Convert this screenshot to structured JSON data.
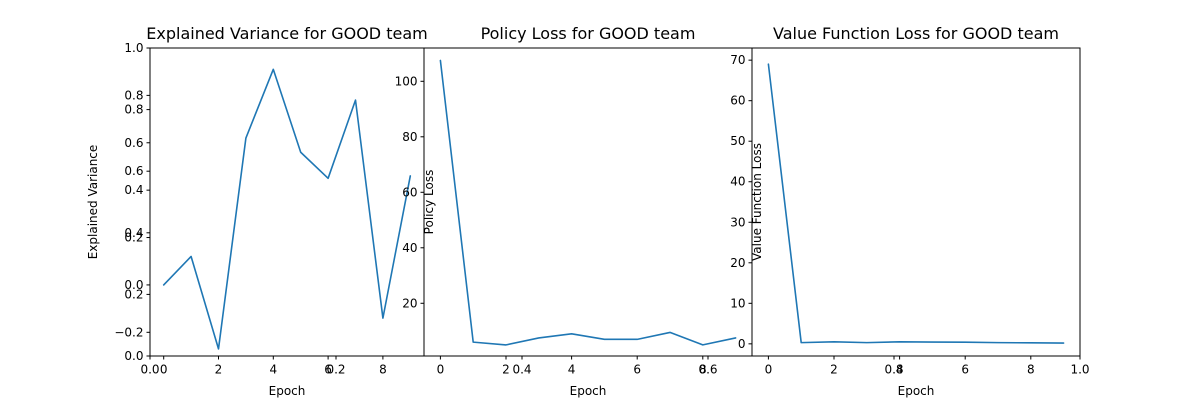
{
  "chart_data": [
    {
      "type": "line",
      "title": "Explained Variance for GOOD team",
      "xlabel": "Epoch",
      "ylabel": "Explained Variance",
      "xlim": [
        -0.5,
        9.5
      ],
      "ylim": [
        -0.3,
        1.0
      ],
      "x": [
        0,
        1,
        2,
        3,
        4,
        5,
        6,
        7,
        8,
        9
      ],
      "series": [
        {
          "name": "",
          "color": "#1f77b4",
          "values": [
            0.0,
            0.12,
            -0.27,
            0.62,
            0.91,
            0.56,
            0.45,
            0.78,
            -0.14,
            0.46
          ]
        }
      ],
      "xticks": [
        0,
        2,
        4,
        6,
        8
      ],
      "xtick_labels": [
        "0",
        "2",
        "4",
        "6",
        "8"
      ],
      "yticks": [
        -0.2,
        0.0,
        0.2,
        0.4,
        0.6,
        0.8
      ],
      "ytick_labels": [
        "−0.2",
        "0.0",
        "0.2",
        "0.4",
        "0.6",
        "0.8"
      ],
      "grid": false
    },
    {
      "type": "line",
      "title": "Policy Loss for GOOD team",
      "xlabel": "Epoch",
      "ylabel": "Policy Loss",
      "xlim": [
        -0.5,
        9.5
      ],
      "ylim": [
        1.0,
        112.0
      ],
      "x": [
        0,
        1,
        2,
        3,
        4,
        5,
        6,
        7,
        8,
        9
      ],
      "series": [
        {
          "name": "",
          "color": "#1f77b4",
          "values": [
            107.5,
            6.0,
            5.0,
            7.5,
            9.0,
            7.0,
            7.0,
            9.5,
            5.0,
            7.5
          ]
        }
      ],
      "xticks": [
        0,
        2,
        4,
        6,
        8
      ],
      "xtick_labels": [
        "0",
        "2",
        "4",
        "6",
        "8"
      ],
      "yticks": [
        20,
        40,
        60,
        80,
        100
      ],
      "ytick_labels": [
        "20",
        "40",
        "60",
        "80",
        "100"
      ],
      "grid": false
    },
    {
      "type": "line",
      "title": "Value Function Loss for GOOD team",
      "xlabel": "Epoch",
      "ylabel": "Value Function Loss",
      "xlim": [
        -0.5,
        9.5
      ],
      "ylim": [
        -3.0,
        73.0
      ],
      "x": [
        0,
        1,
        2,
        3,
        4,
        5,
        6,
        7,
        8,
        9
      ],
      "series": [
        {
          "name": "",
          "color": "#1f77b4",
          "values": [
            69.0,
            0.3,
            0.5,
            0.3,
            0.5,
            0.45,
            0.4,
            0.3,
            0.25,
            0.2
          ]
        }
      ],
      "xticks": [
        0,
        2,
        4,
        6,
        8
      ],
      "xtick_labels": [
        "0",
        "2",
        "4",
        "6",
        "8"
      ],
      "yticks": [
        0,
        10,
        20,
        30,
        40,
        50,
        60,
        70
      ],
      "ytick_labels": [
        "0",
        "10",
        "20",
        "30",
        "40",
        "50",
        "60",
        "70"
      ],
      "grid": false
    }
  ],
  "overlay_axis": {
    "xlim": [
      0.0,
      1.0
    ],
    "ylim": [
      0.0,
      1.0
    ],
    "xticks": [
      0.0,
      0.2,
      0.4,
      0.6,
      0.8,
      1.0
    ],
    "xtick_labels": [
      "0.0",
      "0.2",
      "0.4",
      "0.6",
      "0.8",
      "1.0"
    ],
    "yticks": [
      0.0,
      0.2,
      0.4,
      0.6,
      0.8,
      1.0
    ],
    "ytick_labels": [
      "0.0",
      "0.2",
      "0.4",
      "0.6",
      "0.8",
      "1.0"
    ]
  }
}
